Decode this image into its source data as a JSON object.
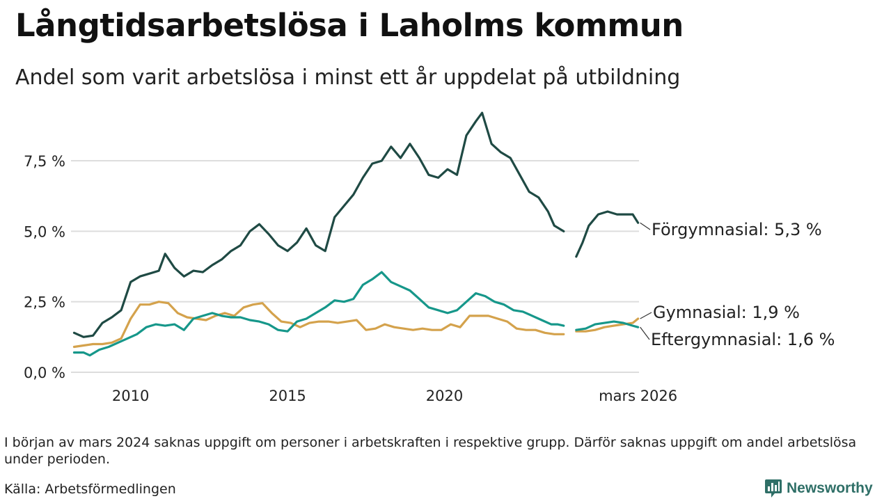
{
  "title": "Långtidsarbetslösa i Laholms kommun",
  "subtitle": "Andel som varit arbetslösa i minst ett år uppdelat på utbildning",
  "note": "I början av mars 2024 saknas uppgift om personer i arbetskraften i respektive grupp. Därför saknas uppgift om andel arbetslösa under perioden.",
  "source": "Källa: Arbetsförmedlingen",
  "brand": {
    "name": "Newsworthy",
    "icon": "newsworthy-chart-bubble-icon"
  },
  "colors": {
    "forgymnasial": "#1f4a44",
    "gymnasial": "#d4a24c",
    "eftergymnasial": "#16978a",
    "grid": "#dddddd",
    "brand": "#2f6f67"
  },
  "chart_data": {
    "type": "line",
    "title": "Långtidsarbetslösa i Laholms kommun",
    "subtitle": "Andel som varit arbetslösa i minst ett år uppdelat på utbildning",
    "xlabel": "",
    "ylabel": "",
    "x_unit": "year (decimal)",
    "xlim": [
      2008.1,
      2026.2
    ],
    "ylim": [
      0,
      9.5
    ],
    "x_ticks": [
      {
        "value": 2010,
        "label": "2010"
      },
      {
        "value": 2015,
        "label": "2015"
      },
      {
        "value": 2020,
        "label": "2020"
      },
      {
        "value": 2026.17,
        "label": "mars 2026"
      }
    ],
    "y_ticks": [
      {
        "value": 0,
        "label": "0,0 %"
      },
      {
        "value": 2.5,
        "label": "2,5 %"
      },
      {
        "value": 5,
        "label": "5,0 %"
      },
      {
        "value": 7.5,
        "label": "7,5 %"
      }
    ],
    "grid": true,
    "gap": {
      "from": 2023.85,
      "to": 2024.15
    },
    "series": [
      {
        "name": "Förgymnasial",
        "end_label": "Förgymnasial: 5,3 %",
        "x": [
          2008.2,
          2008.5,
          2008.8,
          2009.1,
          2009.4,
          2009.7,
          2010.0,
          2010.3,
          2010.6,
          2010.9,
          2011.1,
          2011.4,
          2011.7,
          2012.0,
          2012.3,
          2012.6,
          2012.9,
          2013.2,
          2013.5,
          2013.8,
          2014.1,
          2014.4,
          2014.7,
          2015.0,
          2015.3,
          2015.6,
          2015.9,
          2016.2,
          2016.5,
          2016.8,
          2017.1,
          2017.4,
          2017.7,
          2018.0,
          2018.3,
          2018.6,
          2018.9,
          2019.2,
          2019.5,
          2019.8,
          2020.1,
          2020.4,
          2020.7,
          2021.0,
          2021.2,
          2021.5,
          2021.8,
          2022.1,
          2022.4,
          2022.7,
          2023.0,
          2023.3,
          2023.5,
          2023.8,
          2024.2,
          2024.4,
          2024.6,
          2024.9,
          2025.2,
          2025.5,
          2025.8,
          2026.0,
          2026.17
        ],
        "y": [
          1.4,
          1.25,
          1.3,
          1.75,
          1.95,
          2.2,
          3.2,
          3.4,
          3.5,
          3.6,
          4.2,
          3.7,
          3.4,
          3.6,
          3.55,
          3.8,
          4.0,
          4.3,
          4.5,
          5.0,
          5.25,
          4.9,
          4.5,
          4.3,
          4.6,
          5.1,
          4.5,
          4.3,
          5.5,
          5.9,
          6.3,
          6.9,
          7.4,
          7.5,
          8.0,
          7.6,
          8.1,
          7.6,
          7.0,
          6.9,
          7.2,
          7.0,
          8.4,
          8.9,
          9.2,
          8.1,
          7.8,
          7.6,
          7.0,
          6.4,
          6.2,
          5.7,
          5.2,
          5.0,
          4.1,
          4.6,
          5.2,
          5.6,
          5.7,
          5.6,
          5.6,
          5.6,
          5.3
        ]
      },
      {
        "name": "Gymnasial",
        "end_label": "Gymnasial: 1,9 %",
        "x": [
          2008.2,
          2008.5,
          2008.8,
          2009.1,
          2009.4,
          2009.7,
          2010.0,
          2010.3,
          2010.6,
          2010.9,
          2011.2,
          2011.5,
          2011.8,
          2012.1,
          2012.4,
          2012.7,
          2013.0,
          2013.3,
          2013.6,
          2013.9,
          2014.2,
          2014.5,
          2014.8,
          2015.1,
          2015.4,
          2015.7,
          2016.0,
          2016.3,
          2016.6,
          2016.9,
          2017.2,
          2017.5,
          2017.8,
          2018.1,
          2018.4,
          2018.7,
          2019.0,
          2019.3,
          2019.6,
          2019.9,
          2020.2,
          2020.5,
          2020.8,
          2021.1,
          2021.4,
          2021.7,
          2022.0,
          2022.3,
          2022.6,
          2022.9,
          2023.2,
          2023.5,
          2023.8,
          2024.2,
          2024.5,
          2024.8,
          2025.1,
          2025.4,
          2025.7,
          2026.0,
          2026.17
        ],
        "y": [
          0.9,
          0.95,
          1.0,
          1.0,
          1.05,
          1.2,
          1.9,
          2.4,
          2.4,
          2.5,
          2.45,
          2.1,
          1.95,
          1.9,
          1.85,
          2.0,
          2.1,
          2.0,
          2.3,
          2.4,
          2.45,
          2.1,
          1.8,
          1.75,
          1.6,
          1.75,
          1.8,
          1.8,
          1.75,
          1.8,
          1.85,
          1.5,
          1.55,
          1.7,
          1.6,
          1.55,
          1.5,
          1.55,
          1.5,
          1.5,
          1.7,
          1.6,
          2.0,
          2.0,
          2.0,
          1.9,
          1.8,
          1.55,
          1.5,
          1.5,
          1.4,
          1.35,
          1.35,
          1.45,
          1.45,
          1.5,
          1.6,
          1.65,
          1.7,
          1.75,
          1.9
        ]
      },
      {
        "name": "Eftergymnasial",
        "end_label": "Eftergymnasial: 1,6 %",
        "x": [
          2008.2,
          2008.5,
          2008.7,
          2009.0,
          2009.3,
          2009.6,
          2009.9,
          2010.2,
          2010.5,
          2010.8,
          2011.1,
          2011.4,
          2011.7,
          2012.0,
          2012.3,
          2012.6,
          2012.9,
          2013.2,
          2013.5,
          2013.8,
          2014.1,
          2014.4,
          2014.7,
          2015.0,
          2015.3,
          2015.6,
          2015.9,
          2016.2,
          2016.5,
          2016.8,
          2017.1,
          2017.4,
          2017.7,
          2018.0,
          2018.3,
          2018.6,
          2018.9,
          2019.2,
          2019.5,
          2019.8,
          2020.1,
          2020.4,
          2020.7,
          2021.0,
          2021.3,
          2021.6,
          2021.9,
          2022.2,
          2022.5,
          2022.8,
          2023.1,
          2023.4,
          2023.6,
          2023.8,
          2024.2,
          2024.5,
          2024.8,
          2025.1,
          2025.4,
          2025.7,
          2026.0,
          2026.17
        ],
        "y": [
          0.7,
          0.7,
          0.6,
          0.8,
          0.9,
          1.05,
          1.2,
          1.35,
          1.6,
          1.7,
          1.65,
          1.7,
          1.5,
          1.9,
          2.0,
          2.1,
          2.0,
          1.95,
          1.95,
          1.85,
          1.8,
          1.7,
          1.5,
          1.45,
          1.8,
          1.9,
          2.1,
          2.3,
          2.55,
          2.5,
          2.6,
          3.1,
          3.3,
          3.55,
          3.2,
          3.05,
          2.9,
          2.6,
          2.3,
          2.2,
          2.1,
          2.2,
          2.5,
          2.8,
          2.7,
          2.5,
          2.4,
          2.2,
          2.15,
          2.0,
          1.85,
          1.7,
          1.7,
          1.65,
          1.5,
          1.55,
          1.7,
          1.75,
          1.8,
          1.75,
          1.65,
          1.6
        ]
      }
    ]
  }
}
